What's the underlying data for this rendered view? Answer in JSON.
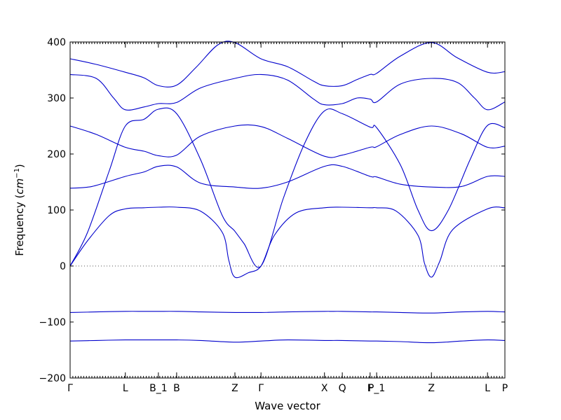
{
  "chart_data": {
    "type": "line",
    "title": "",
    "xlabel": "Wave vector",
    "ylabel": "Frequency",
    "ylabel_unit": "cm",
    "ylabel_unit_exponent": "−1",
    "ylim": [
      -200,
      400
    ],
    "yticks": [
      -200,
      -100,
      0,
      100,
      200,
      300,
      400
    ],
    "xlim": [
      0,
      10.0
    ],
    "grid": false,
    "legend": "none",
    "color": "#0000cc",
    "zero_line": true,
    "high_symmetry_points": [
      {
        "label": "Γ",
        "x": 0.0
      },
      {
        "label": "L",
        "x": 1.27
      },
      {
        "label": "B_1",
        "x": 2.03
      },
      {
        "label": "B",
        "x": 2.45
      },
      {
        "label": "Z",
        "x": 3.79
      },
      {
        "label": "Γ",
        "x": 4.39
      },
      {
        "label": "X",
        "x": 5.85
      },
      {
        "label": "Q",
        "x": 6.26
      },
      {
        "label": "F",
        "x": 6.9
      },
      {
        "label": "P_1",
        "x": 7.05
      },
      {
        "label": "Z",
        "x": 8.31
      },
      {
        "label": "L",
        "x": 9.6
      },
      {
        "label": "P",
        "x": 10.0
      }
    ],
    "series": [
      {
        "x": [
          0,
          0.6,
          1.27,
          1.7,
          2.03,
          2.45,
          3.0,
          3.79,
          4.39,
          5.0,
          5.85,
          6.0,
          6.26,
          6.9,
          7.05,
          7.6,
          8.31,
          9.0,
          9.6,
          10.0
        ],
        "values": [
          -134,
          -133,
          -132,
          -132,
          -132,
          -132,
          -133,
          -136,
          -134,
          -132,
          -133,
          -133,
          -133,
          -134,
          -134,
          -135,
          -137,
          -134,
          -132,
          -133
        ]
      },
      {
        "x": [
          0,
          0.6,
          1.27,
          1.7,
          2.03,
          2.45,
          3.0,
          3.79,
          4.39,
          5.0,
          5.85,
          6.0,
          6.26,
          6.9,
          7.05,
          7.6,
          8.31,
          9.0,
          9.6,
          10.0
        ],
        "values": [
          -83,
          -82,
          -81,
          -81,
          -81,
          -81,
          -82,
          -83,
          -83,
          -82,
          -81,
          -81,
          -81,
          -82,
          -82,
          -83,
          -84,
          -82,
          -81,
          -82
        ]
      },
      {
        "x": [
          0,
          0.4,
          0.9,
          1.27,
          1.7,
          2.03,
          2.45,
          3.0,
          3.5,
          3.65,
          3.79,
          4.1,
          4.39,
          4.7,
          5.2,
          5.85,
          6.26,
          6.9,
          7.05,
          7.5,
          8.0,
          8.15,
          8.31,
          8.5,
          8.8,
          9.6,
          10.0
        ],
        "values": [
          0,
          45,
          90,
          102,
          104,
          105,
          105,
          98,
          60,
          10,
          -20,
          -12,
          0,
          55,
          95,
          104,
          105,
          104,
          104,
          98,
          55,
          5,
          -20,
          8,
          65,
          102,
          104
        ]
      },
      {
        "x": [
          0,
          0.4,
          0.9,
          1.27,
          1.7,
          2.03,
          2.45,
          3.0,
          3.5,
          3.79,
          4.0,
          4.39,
          4.9,
          5.4,
          5.85,
          6.26,
          6.9,
          7.05,
          7.6,
          8.0,
          8.31,
          8.7,
          9.2,
          9.6,
          10.0
        ],
        "values": [
          0,
          60,
          170,
          250,
          262,
          280,
          272,
          190,
          90,
          62,
          40,
          0,
          120,
          220,
          277,
          272,
          248,
          247,
          180,
          100,
          63,
          100,
          190,
          251,
          247
        ]
      },
      {
        "x": [
          0,
          0.5,
          1.27,
          1.7,
          2.03,
          2.45,
          3.0,
          3.79,
          4.39,
          5.0,
          5.85,
          6.26,
          6.9,
          7.05,
          7.6,
          8.31,
          9.0,
          9.6,
          10.0
        ],
        "values": [
          139,
          142,
          160,
          168,
          178,
          177,
          148,
          141,
          139,
          150,
          178,
          178,
          160,
          159,
          146,
          141,
          142,
          160,
          160
        ]
      },
      {
        "x": [
          0,
          0.6,
          1.27,
          1.7,
          2.03,
          2.45,
          3.0,
          3.79,
          4.39,
          5.0,
          5.85,
          6.26,
          6.9,
          7.05,
          7.6,
          8.31,
          9.0,
          9.6,
          10.0
        ],
        "values": [
          250,
          235,
          212,
          205,
          197,
          198,
          232,
          250,
          249,
          228,
          196,
          198,
          212,
          213,
          235,
          250,
          236,
          212,
          214
        ]
      },
      {
        "x": [
          0,
          0.6,
          1.0,
          1.27,
          1.7,
          2.03,
          2.45,
          3.0,
          3.79,
          4.39,
          5.0,
          5.6,
          5.85,
          6.26,
          6.6,
          6.9,
          7.05,
          7.6,
          8.31,
          8.9,
          9.3,
          9.6,
          10.0
        ],
        "values": [
          342,
          335,
          300,
          279,
          284,
          290,
          292,
          318,
          335,
          342,
          332,
          298,
          288,
          290,
          300,
          298,
          293,
          325,
          335,
          328,
          300,
          279,
          293
        ]
      },
      {
        "x": [
          0,
          0.6,
          1.27,
          1.7,
          2.03,
          2.45,
          2.9,
          3.4,
          3.79,
          4.39,
          5.0,
          5.6,
          5.85,
          6.26,
          6.6,
          6.9,
          7.05,
          7.6,
          8.31,
          8.9,
          9.6,
          10.0
        ],
        "values": [
          370,
          360,
          346,
          336,
          322,
          323,
          355,
          395,
          399,
          370,
          356,
          330,
          322,
          322,
          333,
          342,
          344,
          375,
          399,
          372,
          346,
          347
        ]
      }
    ]
  }
}
